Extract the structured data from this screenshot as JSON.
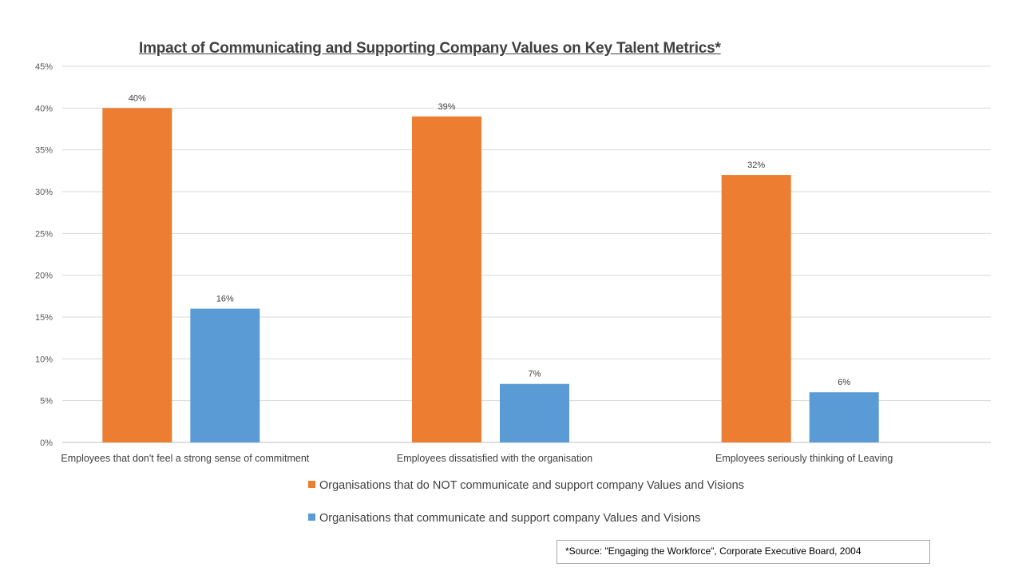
{
  "chart_data": {
    "type": "bar",
    "title": "Impact of Communicating and Supporting Company Values on Key Talent Metrics*",
    "categories": [
      "Employees that don't feel a strong sense of commitment",
      "Employees dissatisfied with the organisation",
      "Employees seriously thinking of Leaving"
    ],
    "series": [
      {
        "name": "Organisations that do NOT communicate and support company Values and Visions",
        "values": [
          40,
          39,
          32
        ],
        "labels": [
          "40%",
          "39%",
          "32%"
        ],
        "color": "#ED7D31"
      },
      {
        "name": "Organisations that communicate and support company Values and Visions",
        "values": [
          16,
          7,
          6
        ],
        "labels": [
          "16%",
          "7%",
          "6%"
        ],
        "color": "#5B9BD5"
      }
    ],
    "yticks": [
      "0%",
      "5%",
      "10%",
      "15%",
      "20%",
      "25%",
      "30%",
      "35%",
      "40%",
      "45%"
    ],
    "ylim": [
      0,
      45
    ],
    "grid": true,
    "legend_position": "bottom",
    "source_note": "*Source:  \"Engaging the Workforce\", Corporate Executive Board, 2004"
  }
}
